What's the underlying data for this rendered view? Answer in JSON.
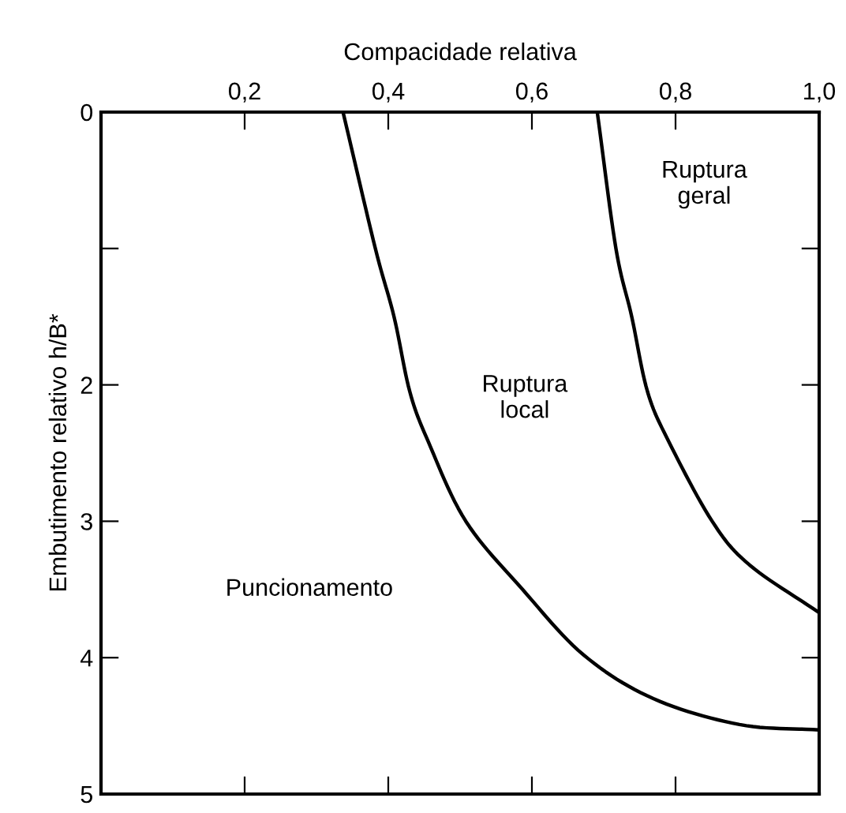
{
  "chart_data": {
    "type": "line",
    "xlabel": "Compacidade relativa",
    "ylabel": "Embutimento relativo h/B*",
    "xlim": [
      0,
      1.0
    ],
    "ylim": [
      5,
      0
    ],
    "xticks": [
      {
        "value": 0.2,
        "label": "0,2"
      },
      {
        "value": 0.4,
        "label": "0,4"
      },
      {
        "value": 0.6,
        "label": "0,6"
      },
      {
        "value": 0.8,
        "label": "0,8"
      },
      {
        "value": 1.0,
        "label": "1,0"
      }
    ],
    "yticks": [
      0,
      {
        "value": 1,
        "label": null
      },
      2,
      3,
      4,
      5
    ],
    "grid": false,
    "legend": false,
    "marker": "none",
    "line_style": "solid",
    "series": [
      {
        "color": "#000000",
        "x": [
          0.337,
          0.382,
          0.408,
          0.43,
          0.456,
          0.508,
          0.587,
          0.672,
          0.769,
          0.889,
          1.0
        ],
        "values": [
          0,
          1.0,
          1.5,
          2.05,
          2.42,
          3.0,
          3.5,
          3.98,
          4.3,
          4.49,
          4.53
        ]
      },
      {
        "color": "#000000",
        "x": [
          0.691,
          0.717,
          0.739,
          0.761,
          0.791,
          0.851,
          0.903,
          1.0
        ],
        "values": [
          0,
          1.0,
          1.5,
          2.05,
          2.42,
          3.0,
          3.32,
          3.67
        ]
      }
    ],
    "annotations": [
      "Ruptura\ngeral",
      "Ruptura\nlocal",
      "Puncionamento"
    ]
  }
}
